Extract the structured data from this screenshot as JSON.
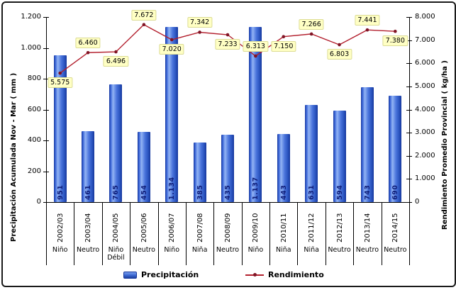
{
  "chart_data": {
    "type": "bar+line",
    "grid": false,
    "legend_position": "bottom",
    "categories": [
      {
        "year": "2002/03",
        "phase": "Niño"
      },
      {
        "year": "2003/04",
        "phase": "Neutro"
      },
      {
        "year": "2004/05",
        "phase": "Niño Débil"
      },
      {
        "year": "2005/06",
        "phase": "Neutro"
      },
      {
        "year": "2006/07",
        "phase": "Niño"
      },
      {
        "year": "2007/08",
        "phase": "Niña"
      },
      {
        "year": "2008/09",
        "phase": "Neutro"
      },
      {
        "year": "2009/10",
        "phase": "Niño"
      },
      {
        "year": "2010/11",
        "phase": "Niña"
      },
      {
        "year": "2011/12",
        "phase": "Niña"
      },
      {
        "year": "2012/13",
        "phase": "Neutro"
      },
      {
        "year": "2013/14",
        "phase": "Neutro"
      },
      {
        "year": "2014/15",
        "phase": "Neutro"
      }
    ],
    "series": [
      {
        "name": "Precipitación",
        "type": "bar",
        "axis": "left",
        "color": "#3a66d0",
        "values": [
          951,
          461,
          765,
          454,
          1134,
          385,
          435,
          1137,
          443,
          631,
          594,
          743,
          690
        ],
        "labels": [
          "951",
          "461",
          "765",
          "454",
          "1.134",
          "385",
          "435",
          "1.137",
          "443",
          "631",
          "594",
          "743",
          "690"
        ]
      },
      {
        "name": "Rendimiento",
        "type": "line",
        "axis": "right",
        "color": "#b3202e",
        "marker_color": "#801425",
        "values": [
          5575,
          6460,
          6496,
          7672,
          7020,
          7342,
          7233,
          6313,
          7150,
          7266,
          6803,
          7441,
          7380
        ],
        "labels": [
          "5.575",
          "6.460",
          "6.496",
          "7.672",
          "7.020",
          "7.342",
          "7.233",
          "6.313",
          "7.150",
          "7.266",
          "6.803",
          "7.441",
          "7.380"
        ],
        "label_positions": [
          "below",
          "above",
          "below",
          "above",
          "below",
          "above",
          "below",
          "above",
          "below",
          "above",
          "below",
          "above",
          "below"
        ]
      }
    ],
    "left_axis": {
      "title": "Precipitación Acumulada Nov - Mar ( mm )",
      "min": 0,
      "max": 1200,
      "step": 200,
      "tick_labels": [
        "0",
        "200",
        "400",
        "600",
        "800",
        "1.000",
        "1.200"
      ]
    },
    "right_axis": {
      "title": "Rendimiento Promedio Provincial ( kg/ha )",
      "min": 0,
      "max": 8000,
      "step": 1000,
      "tick_labels": [
        "0",
        "1.000",
        "2.000",
        "3.000",
        "4.000",
        "5.000",
        "6.000",
        "7.000",
        "8.000"
      ]
    },
    "label_box_color": "#ffffc4"
  }
}
